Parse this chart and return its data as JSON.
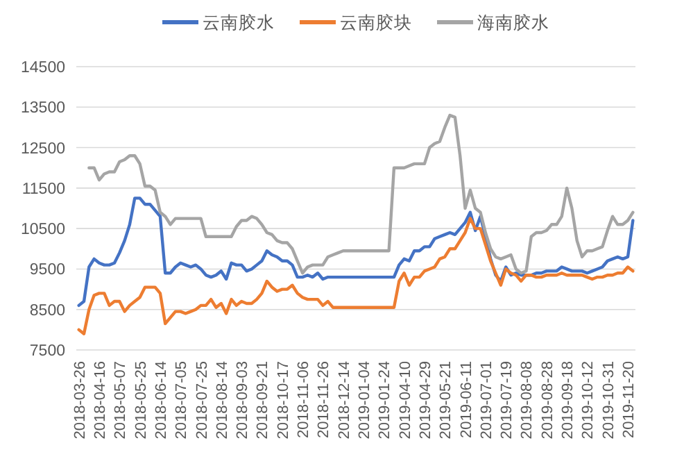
{
  "chart_data": {
    "type": "line",
    "categories": [
      "2018-03-26",
      null,
      null,
      null,
      "2018-04-16",
      null,
      null,
      null,
      "2018-05-07",
      null,
      null,
      null,
      "2018-05-25",
      null,
      null,
      null,
      "2018-06-14",
      null,
      null,
      null,
      "2018-07-05",
      null,
      null,
      null,
      "2018-07-25",
      null,
      null,
      null,
      "2018-08-14",
      null,
      null,
      null,
      "2018-09-03",
      null,
      null,
      null,
      "2018-09-21",
      null,
      null,
      null,
      "2018-10-17",
      null,
      null,
      null,
      "2018-11-06",
      null,
      null,
      null,
      "2018-11-26",
      null,
      null,
      null,
      "2018-12-14",
      null,
      null,
      null,
      "2019-01-04",
      null,
      null,
      null,
      "2019-01-24",
      null,
      null,
      null,
      "2019-04-10",
      null,
      null,
      null,
      "2019-04-29",
      null,
      null,
      null,
      "2019-05-21",
      null,
      null,
      null,
      "2019-06-11",
      null,
      null,
      null,
      "2019-07-01",
      null,
      null,
      null,
      "2019-07-19",
      null,
      null,
      null,
      "2019-08-08",
      null,
      null,
      null,
      "2019-08-28",
      null,
      null,
      null,
      "2019-09-18",
      null,
      null,
      null,
      "2019-10-12",
      null,
      null,
      null,
      "2019-10-31",
      null,
      null,
      null,
      "2019-11-20",
      null
    ],
    "series": [
      {
        "name": "云南胶水",
        "color": "#4472c4",
        "values": [
          8600,
          8700,
          9550,
          9750,
          9650,
          9600,
          9600,
          9650,
          9900,
          10200,
          10600,
          11250,
          11250,
          11100,
          11100,
          10950,
          10800,
          9400,
          9400,
          9550,
          9650,
          9600,
          9550,
          9600,
          9500,
          9350,
          9300,
          9350,
          9450,
          9250,
          9650,
          9600,
          9600,
          9450,
          9500,
          9600,
          9700,
          9950,
          9850,
          9800,
          9700,
          9700,
          9600,
          9300,
          9300,
          9350,
          9300,
          9400,
          9250,
          9300,
          9300,
          9300,
          9300,
          9300,
          9300,
          9300,
          9300,
          9300,
          9300,
          9300,
          9300,
          9300,
          9300,
          9600,
          9750,
          9700,
          9950,
          9950,
          10050,
          10050,
          10250,
          10300,
          10350,
          10400,
          10350,
          10500,
          10650,
          10900,
          10450,
          10800,
          10300,
          9750,
          9350,
          9200,
          9550,
          9350,
          9400,
          9350,
          9350,
          9350,
          9400,
          9400,
          9450,
          9450,
          9450,
          9550,
          9500,
          9450,
          9450,
          9450,
          9400,
          9450,
          9500,
          9550,
          9700,
          9750,
          9800,
          9750,
          9800,
          10700
        ]
      },
      {
        "name": "云南胶块",
        "color": "#ed7d31",
        "values": [
          8000,
          7900,
          8500,
          8850,
          8900,
          8900,
          8600,
          8700,
          8700,
          8450,
          8600,
          8700,
          8800,
          9050,
          9050,
          9050,
          8900,
          8150,
          8300,
          8450,
          8450,
          8400,
          8450,
          8500,
          8600,
          8600,
          8750,
          8550,
          8650,
          8400,
          8750,
          8600,
          8700,
          8650,
          8650,
          8750,
          8900,
          9200,
          9050,
          8950,
          9000,
          9000,
          9100,
          8900,
          8800,
          8750,
          8750,
          8750,
          8600,
          8700,
          8550,
          8550,
          8550,
          8550,
          8550,
          8550,
          8550,
          8550,
          8550,
          8550,
          8550,
          8550,
          8550,
          9200,
          9400,
          9100,
          9300,
          9300,
          9450,
          9500,
          9550,
          9750,
          9800,
          10000,
          10000,
          10200,
          10400,
          10750,
          10500,
          10500,
          10100,
          9700,
          9400,
          9100,
          9500,
          9400,
          9350,
          9200,
          9350,
          9350,
          9300,
          9300,
          9350,
          9350,
          9350,
          9400,
          9350,
          9350,
          9350,
          9350,
          9300,
          9250,
          9300,
          9300,
          9350,
          9350,
          9400,
          9400,
          9550,
          9450
        ]
      },
      {
        "name": "海南胶水",
        "color": "#a5a5a5",
        "values": [
          null,
          null,
          12000,
          12000,
          11700,
          11850,
          11900,
          11900,
          12150,
          12200,
          12300,
          12300,
          12100,
          11550,
          11550,
          11450,
          10900,
          10800,
          10600,
          10750,
          10750,
          10750,
          10750,
          10750,
          10750,
          10300,
          10300,
          10300,
          10300,
          10300,
          10300,
          10550,
          10700,
          10700,
          10800,
          10750,
          10600,
          10400,
          10350,
          10200,
          10150,
          10150,
          10000,
          9700,
          9400,
          9550,
          9600,
          9600,
          9600,
          9800,
          9850,
          9900,
          9950,
          9950,
          9950,
          9950,
          9950,
          9950,
          9950,
          9950,
          9950,
          9950,
          12000,
          12000,
          12000,
          12050,
          12100,
          12100,
          12100,
          12500,
          12600,
          12650,
          13000,
          13300,
          13250,
          12300,
          11000,
          11450,
          11000,
          10900,
          10400,
          10000,
          9800,
          9750,
          9800,
          9850,
          9500,
          9400,
          9450,
          10300,
          10400,
          10400,
          10450,
          10600,
          10600,
          10800,
          11500,
          11000,
          10200,
          9800,
          9950,
          9950,
          10000,
          10050,
          10450,
          10800,
          10600,
          10600,
          10700,
          10900
        ]
      }
    ],
    "ylim": [
      7500,
      14500
    ],
    "yticks": [
      7500,
      8500,
      9500,
      10500,
      11500,
      12500,
      13500,
      14500
    ],
    "grid": "y",
    "legend": "top"
  }
}
